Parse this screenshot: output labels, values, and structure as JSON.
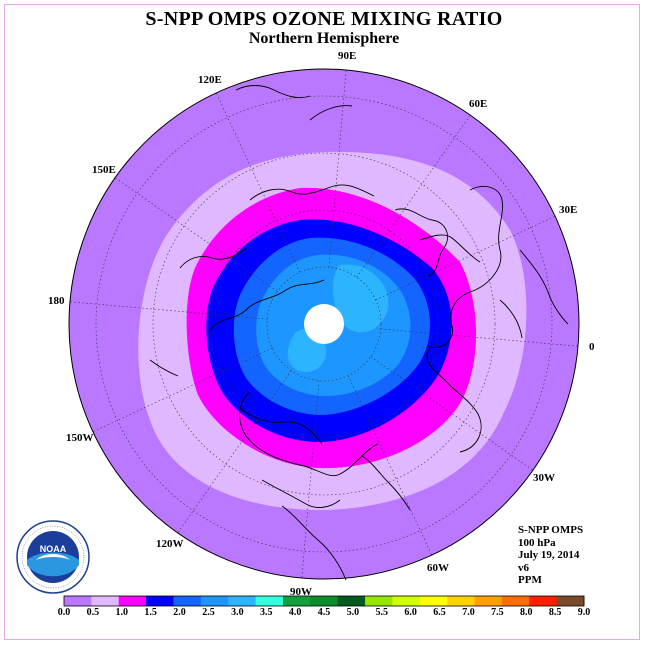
{
  "header": {
    "title": "S-NPP OMPS OZONE MIXING RATIO",
    "subtitle": "Northern Hemisphere"
  },
  "longitude_labels": [
    {
      "label": "90E",
      "lon": 90
    },
    {
      "label": "60E",
      "lon": 60
    },
    {
      "label": "30E",
      "lon": 30
    },
    {
      "label": "0",
      "lon": 0
    },
    {
      "label": "30W",
      "lon": -30
    },
    {
      "label": "60W",
      "lon": -60
    },
    {
      "label": "90W",
      "lon": -90
    },
    {
      "label": "120W",
      "lon": -120
    },
    {
      "label": "150W",
      "lon": -150
    },
    {
      "label": "180",
      "lon": 180
    },
    {
      "label": "150E",
      "lon": 150
    },
    {
      "label": "120E",
      "lon": 120
    }
  ],
  "info": {
    "instrument": "S-NPP OMPS",
    "level": "100 hPa",
    "date": "July 19, 2014",
    "version": "v6",
    "units": "PPM"
  },
  "logo": {
    "text": "NOAA",
    "ring_text": "NATIONAL OCEANIC AND ATMOSPHERIC ADMINISTRATION · U.S. DEPARTMENT OF COMMERCE"
  },
  "colorbar": {
    "ticks": [
      "0.0",
      "0.5",
      "1.0",
      "1.5",
      "2.0",
      "2.5",
      "3.0",
      "3.5",
      "4.0",
      "4.5",
      "5.0",
      "5.5",
      "6.0",
      "6.5",
      "7.0",
      "7.5",
      "8.0",
      "8.5",
      "9.0"
    ],
    "colors": [
      "#b978ff",
      "#e0b8ff",
      "#ff00ff",
      "#0000ff",
      "#1464ff",
      "#1e96ff",
      "#2db4ff",
      "#32ffdc",
      "#12a03c",
      "#0a8c28",
      "#005a1e",
      "#96e600",
      "#d2ff00",
      "#ffff00",
      "#ffd200",
      "#ffa000",
      "#ff6e00",
      "#ff1e00",
      "#7a4a2a"
    ]
  },
  "chart_data": {
    "type": "heatmap",
    "projection": "north-polar-stereographic",
    "variable": "ozone mixing ratio",
    "units": "PPM",
    "pressure_level": "100 hPa",
    "date": "July 19, 2014",
    "bins": [
      0.0,
      0.5,
      1.0,
      1.5,
      2.0,
      2.5,
      3.0,
      3.5,
      4.0,
      4.5,
      5.0,
      5.5,
      6.0,
      6.5,
      7.0,
      7.5,
      8.0,
      8.5,
      9.0
    ],
    "approx_contours": [
      {
        "range": [
          0.0,
          0.5
        ],
        "region": "outer ring, low latitudes"
      },
      {
        "range": [
          0.5,
          1.0
        ],
        "region": "mid-latitude band"
      },
      {
        "range": [
          1.0,
          1.5
        ],
        "region": "high-latitude band"
      },
      {
        "range": [
          1.5,
          2.0
        ],
        "region": "polar ring"
      },
      {
        "range": [
          2.0,
          3.0
        ],
        "region": "polar cap"
      },
      {
        "range": [
          3.0,
          3.5
        ],
        "region": "embedded patches near pole"
      }
    ],
    "no_data": "white disc at the pole"
  }
}
